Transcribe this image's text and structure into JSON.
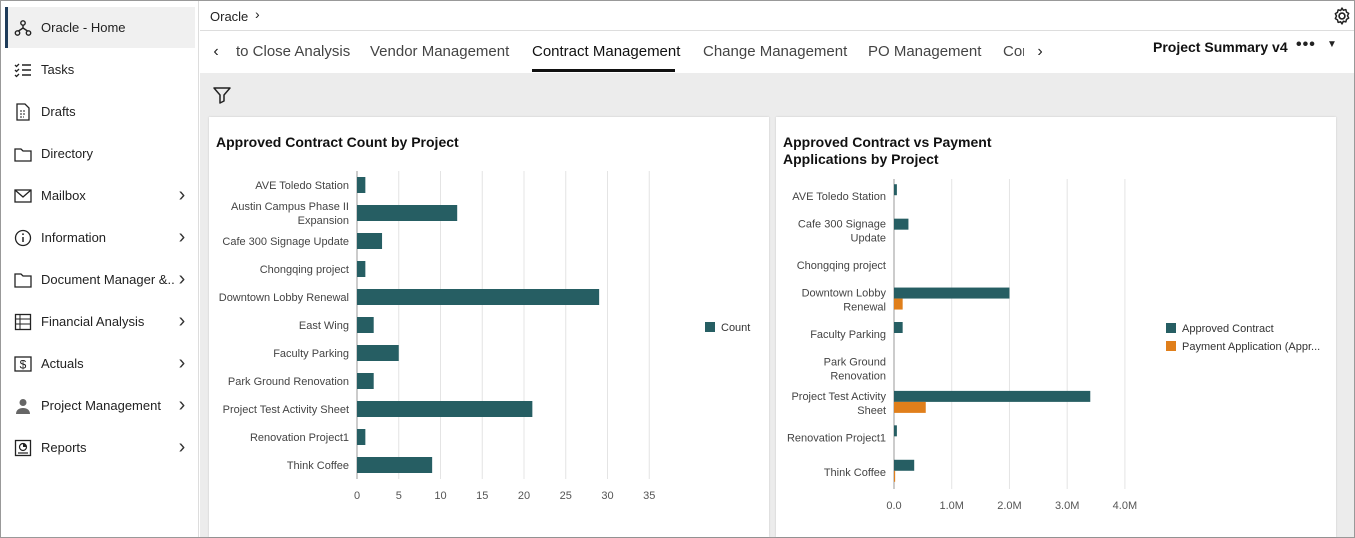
{
  "sidebar": {
    "items": [
      {
        "label": "Oracle - Home",
        "icon": "hierarchy-icon",
        "chevron": false,
        "active": true
      },
      {
        "label": "Tasks",
        "icon": "checklist-icon",
        "chevron": false
      },
      {
        "label": "Drafts",
        "icon": "draft-icon",
        "chevron": false
      },
      {
        "label": "Directory",
        "icon": "folder-icon",
        "chevron": false
      },
      {
        "label": "Mailbox",
        "icon": "mail-icon",
        "chevron": true
      },
      {
        "label": "Information",
        "icon": "info-icon",
        "chevron": true
      },
      {
        "label": "Document Manager &...",
        "icon": "document-folder-icon",
        "chevron": true
      },
      {
        "label": "Financial Analysis",
        "icon": "spreadsheet-icon",
        "chevron": true
      },
      {
        "label": "Actuals",
        "icon": "dollar-icon",
        "chevron": true
      },
      {
        "label": "Project Management",
        "icon": "person-icon",
        "chevron": true
      },
      {
        "label": "Reports",
        "icon": "report-icon",
        "chevron": true
      }
    ]
  },
  "topbar": {
    "breadcrumb": "Oracle"
  },
  "tabs": {
    "items": [
      "to Close Analysis",
      "Vendor Management",
      "Contract Management",
      "Change Management",
      "PO Management",
      "Cor"
    ],
    "active_index": 2,
    "dashboard_title": "Project Summary v4",
    "more": "•••"
  },
  "chart_data": [
    {
      "type": "bar",
      "orientation": "horizontal",
      "title": "Approved Contract Count by Project",
      "categories": [
        "AVE Toledo Station",
        "Austin Campus Phase II Expansion",
        "Cafe 300 Signage Update",
        "Chongqing project",
        "Downtown Lobby Renewal",
        "East Wing",
        "Faculty Parking",
        "Park Ground Renovation",
        "Project Test Activity Sheet",
        "Renovation Project1",
        "Think Coffee"
      ],
      "category_lines": [
        [
          "AVE Toledo Station"
        ],
        [
          "Austin Campus Phase II",
          "Expansion"
        ],
        [
          "Cafe 300 Signage Update"
        ],
        [
          "Chongqing project"
        ],
        [
          "Downtown Lobby Renewal"
        ],
        [
          "East Wing"
        ],
        [
          "Faculty Parking"
        ],
        [
          "Park Ground Renovation"
        ],
        [
          "Project Test Activity Sheet"
        ],
        [
          "Renovation Project1"
        ],
        [
          "Think Coffee"
        ]
      ],
      "series": [
        {
          "name": "Count",
          "color": "#265e63",
          "values": [
            1,
            12,
            3,
            1,
            29,
            2,
            5,
            2,
            21,
            1,
            9
          ]
        }
      ],
      "xlim": [
        0,
        40
      ],
      "ticks": [
        0,
        5,
        10,
        15,
        20,
        25,
        30,
        35
      ],
      "tick_labels": [
        "0",
        "5",
        "10",
        "15",
        "20",
        "25",
        "30",
        "35"
      ],
      "legend": "right",
      "grid": true
    },
    {
      "type": "bar",
      "orientation": "horizontal",
      "title": "Approved Contract vs Payment Applications by Project",
      "title_lines": [
        "Approved Contract vs Payment",
        "Applications by Project"
      ],
      "categories": [
        "AVE Toledo Station",
        "Cafe 300 Signage Update",
        "Chongqing project",
        "Downtown Lobby Renewal",
        "Faculty Parking",
        "Park Ground Renovation",
        "Project Test Activity Sheet",
        "Renovation Project1",
        "Think Coffee"
      ],
      "category_lines": [
        [
          "AVE Toledo Station"
        ],
        [
          "Cafe 300 Signage",
          "Update"
        ],
        [
          "Chongqing project"
        ],
        [
          "Downtown Lobby",
          "Renewal"
        ],
        [
          "Faculty Parking"
        ],
        [
          "Park Ground",
          "Renovation"
        ],
        [
          "Project Test Activity",
          "Sheet"
        ],
        [
          "Renovation Project1"
        ],
        [
          "Think Coffee"
        ]
      ],
      "series": [
        {
          "name": "Approved Contract",
          "color": "#265e63",
          "values": [
            50000,
            250000,
            0,
            2000000,
            150000,
            0,
            3400000,
            50000,
            350000
          ]
        },
        {
          "name": "Payment Application (Appr...",
          "color": "#e07f1b",
          "values": [
            0,
            0,
            0,
            150000,
            0,
            0,
            550000,
            0,
            20000
          ]
        }
      ],
      "xlim": [
        0,
        4400000
      ],
      "ticks": [
        0,
        1000000,
        2000000,
        3000000,
        4000000
      ],
      "tick_labels": [
        "0.0",
        "1.0M",
        "2.0M",
        "3.0M",
        "4.0M"
      ],
      "legend": "right",
      "grid": true
    }
  ]
}
